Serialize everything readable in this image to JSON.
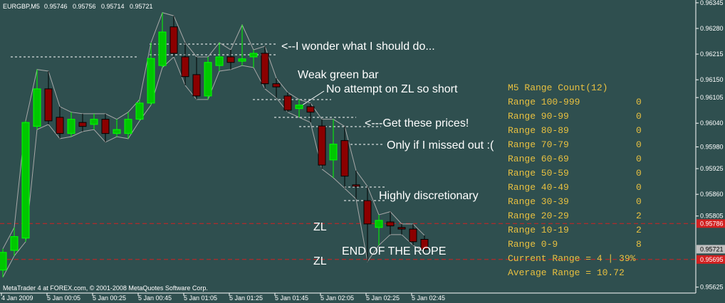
{
  "chart_data": {
    "type": "candlestick",
    "title": "EURGBP,M5",
    "categories": [
      "4 Jan 2009",
      null,
      null,
      null,
      "5 Jan 00:05",
      null,
      null,
      null,
      "5 Jan 00:25",
      null,
      null,
      null,
      "5 Jan 00:45",
      null,
      null,
      null,
      "5 Jan 01:05",
      null,
      null,
      null,
      "5 Jan 01:25",
      null,
      null,
      null,
      "5 Jan 01:45",
      null,
      null,
      null,
      "5 Jan 02:05",
      null,
      null,
      null,
      "5 Jan 02:25",
      null,
      null,
      null,
      "5 Jan 02:45",
      null
    ],
    "open": [
      0.95668,
      0.95718,
      0.95749,
      0.96032,
      0.96127,
      0.96055,
      0.96014,
      0.96042,
      0.96037,
      0.9605,
      0.96014,
      0.96014,
      0.9605,
      0.96091,
      0.96186,
      0.96284,
      0.96208,
      0.96163,
      0.96109,
      0.96186,
      0.96208,
      0.96197,
      0.96208,
      0.96217,
      0.9614,
      0.96109,
      0.96077,
      0.96082,
      0.96033,
      0.95947,
      0.95996,
      0.95884,
      0.95844,
      0.95776,
      0.9579,
      0.95776,
      0.95772,
      0.95746
    ],
    "high": [
      0.95722,
      0.95776,
      0.96046,
      0.96176,
      0.96172,
      0.96082,
      0.96068,
      0.96064,
      0.96064,
      0.96064,
      0.9605,
      0.96068,
      0.961,
      0.96244,
      0.9632,
      0.96312,
      0.96244,
      0.96208,
      0.96208,
      0.96244,
      0.96226,
      0.96289,
      0.96226,
      0.96235,
      0.96154,
      0.96118,
      0.961,
      0.96091,
      0.9605,
      0.9605,
      0.96032,
      0.9592,
      0.9588,
      0.95808,
      0.95816,
      0.95785,
      0.95785,
      0.95756
    ],
    "low": [
      0.9565,
      0.95704,
      0.9574,
      0.96024,
      0.96037,
      0.96001,
      0.96006,
      0.96019,
      0.96024,
      0.95992,
      0.96006,
      0.96001,
      0.96046,
      0.96086,
      0.96181,
      0.96208,
      0.96136,
      0.961,
      0.961,
      0.96172,
      0.96176,
      0.96186,
      0.96181,
      0.96127,
      0.96104,
      0.96068,
      0.96055,
      0.96042,
      0.95924,
      0.95902,
      0.95875,
      0.95848,
      0.9569,
      0.95731,
      0.95758,
      0.95758,
      0.95731,
      0.95714
    ],
    "close": [
      0.95713,
      0.95753,
      0.96042,
      0.96127,
      0.96046,
      0.96014,
      0.9605,
      0.96032,
      0.9605,
      0.96014,
      0.96024,
      0.9605,
      0.96091,
      0.96204,
      0.96271,
      0.96217,
      0.96158,
      0.96109,
      0.96194,
      0.96208,
      0.96194,
      0.96203,
      0.96217,
      0.9614,
      0.96132,
      0.96073,
      0.96086,
      0.96068,
      0.95934,
      0.95987,
      0.95906,
      0.9588,
      0.95785,
      0.95794,
      0.9578,
      0.95772,
      0.9574,
      0.95721
    ],
    "up_color": "#00c800",
    "down_color": "#8b0000",
    "wick_color": "#00ff00",
    "ylim": [
      0.9561,
      0.96352
    ],
    "yticks": [
      {
        "value": 0.96345,
        "label": "0.96345"
      },
      {
        "value": 0.9628,
        "label": "0.96280"
      },
      {
        "value": 0.96215,
        "label": "0.96215"
      },
      {
        "value": 0.9615,
        "label": "0.96150"
      },
      {
        "value": 0.96105,
        "label": "0.96105"
      },
      {
        "value": 0.9604,
        "label": "0.96040"
      },
      {
        "value": 0.9598,
        "label": "0.95980"
      },
      {
        "value": 0.95925,
        "label": "0.95925"
      },
      {
        "value": 0.9586,
        "label": "0.95860"
      },
      {
        "value": 0.95805,
        "label": "0.95805"
      },
      {
        "value": 0.95625,
        "label": "0.95625"
      }
    ],
    "levels": [
      {
        "value": 0.95786,
        "label": "0.95786"
      },
      {
        "value": 0.95695,
        "label": "0.95695"
      }
    ],
    "level_color": "#d22020",
    "annotations": [
      "<--I wonder what I should do...",
      "Weak green bar",
      "No attempt on ZL so short",
      "<---Get these prices!",
      "Only if I missed out :(",
      "Highly discretionary",
      "ZL",
      "ZL",
      "END OF THE ROPE"
    ],
    "panel": {
      "title": "M5 Range Count(12)",
      "rows": [
        {
          "label": "Range 100-999",
          "count": 0
        },
        {
          "label": "Range 90-99",
          "count": 0
        },
        {
          "label": "Range 80-89",
          "count": 0
        },
        {
          "label": "Range 70-79",
          "count": 0
        },
        {
          "label": "Range 60-69",
          "count": 0
        },
        {
          "label": "Range 50-59",
          "count": 0
        },
        {
          "label": "Range 40-49",
          "count": 0
        },
        {
          "label": "Range 30-39",
          "count": 0
        },
        {
          "label": "Range 20-29",
          "count": 2
        },
        {
          "label": "Range 10-19",
          "count": 2
        },
        {
          "label": "Range 0-9",
          "count": 8
        }
      ],
      "current": "Current Range = 4 | 39%",
      "average": "Average Range = 10.72"
    },
    "footer": "MetaTrader 4 at FOREX.com, © 2001-2008 MetaQuotes Software Corp."
  }
}
